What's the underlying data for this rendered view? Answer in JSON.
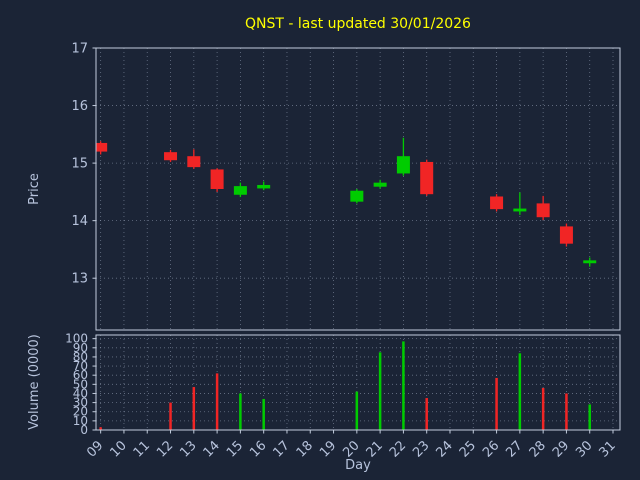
{
  "colors": {
    "background": "#1b2436",
    "title": "#ffff00",
    "axis_text": "#b7c3dc",
    "spine": "#c3cddd",
    "grid": "#aab6cc",
    "up": "#00cc00",
    "down": "#f12525"
  },
  "chart_data": {
    "type": "candlestick",
    "title": "QNST - last updated 30/01/2026",
    "xlabel": "Day",
    "price_axis": {
      "label": "Price",
      "ticks": [
        13,
        14,
        15,
        16,
        17
      ],
      "ylim": [
        12.1,
        17.0
      ]
    },
    "volume_axis": {
      "label": "Volume (0000)",
      "ticks": [
        0,
        10,
        20,
        30,
        40,
        50,
        60,
        70,
        80,
        90,
        100
      ],
      "ylim": [
        0,
        104
      ]
    },
    "x_ticks": [
      "09",
      "10",
      "11",
      "12",
      "13",
      "14",
      "15",
      "16",
      "17",
      "18",
      "19",
      "20",
      "21",
      "22",
      "23",
      "24",
      "25",
      "26",
      "27",
      "28",
      "29",
      "30",
      "31"
    ],
    "x_tick_start_day": 9,
    "xlim": [
      8.8,
      31.3
    ],
    "grid": "dotted",
    "candles": [
      {
        "day": 9,
        "open": 15.35,
        "high": 15.38,
        "low": 15.15,
        "close": 15.2,
        "volume": 3
      },
      {
        "day": 12,
        "open": 15.19,
        "high": 15.23,
        "low": 15.02,
        "close": 15.05,
        "volume": 30
      },
      {
        "day": 13,
        "open": 15.12,
        "high": 15.24,
        "low": 14.9,
        "close": 14.93,
        "volume": 47
      },
      {
        "day": 14,
        "open": 14.89,
        "high": 14.91,
        "low": 14.5,
        "close": 14.55,
        "volume": 62
      },
      {
        "day": 15,
        "open": 14.45,
        "high": 14.66,
        "low": 14.41,
        "close": 14.6,
        "volume": 40
      },
      {
        "day": 16,
        "open": 14.56,
        "high": 14.68,
        "low": 14.53,
        "close": 14.62,
        "volume": 34
      },
      {
        "day": 20,
        "open": 14.33,
        "high": 14.55,
        "low": 14.3,
        "close": 14.52,
        "volume": 42
      },
      {
        "day": 21,
        "open": 14.59,
        "high": 14.71,
        "low": 14.56,
        "close": 14.66,
        "volume": 85
      },
      {
        "day": 22,
        "open": 14.82,
        "high": 15.44,
        "low": 14.78,
        "close": 15.12,
        "volume": 97
      },
      {
        "day": 23,
        "open": 15.02,
        "high": 15.06,
        "low": 14.43,
        "close": 14.46,
        "volume": 35
      },
      {
        "day": 26,
        "open": 14.42,
        "high": 14.46,
        "low": 14.16,
        "close": 14.2,
        "volume": 57
      },
      {
        "day": 27,
        "open": 14.16,
        "high": 14.49,
        "low": 14.1,
        "close": 14.21,
        "volume": 84
      },
      {
        "day": 28,
        "open": 14.3,
        "high": 14.43,
        "low": 14.01,
        "close": 14.06,
        "volume": 46
      },
      {
        "day": 29,
        "open": 13.9,
        "high": 13.95,
        "low": 13.55,
        "close": 13.6,
        "volume": 40
      },
      {
        "day": 30,
        "open": 13.26,
        "high": 13.36,
        "low": 13.2,
        "close": 13.31,
        "volume": 28
      }
    ]
  }
}
